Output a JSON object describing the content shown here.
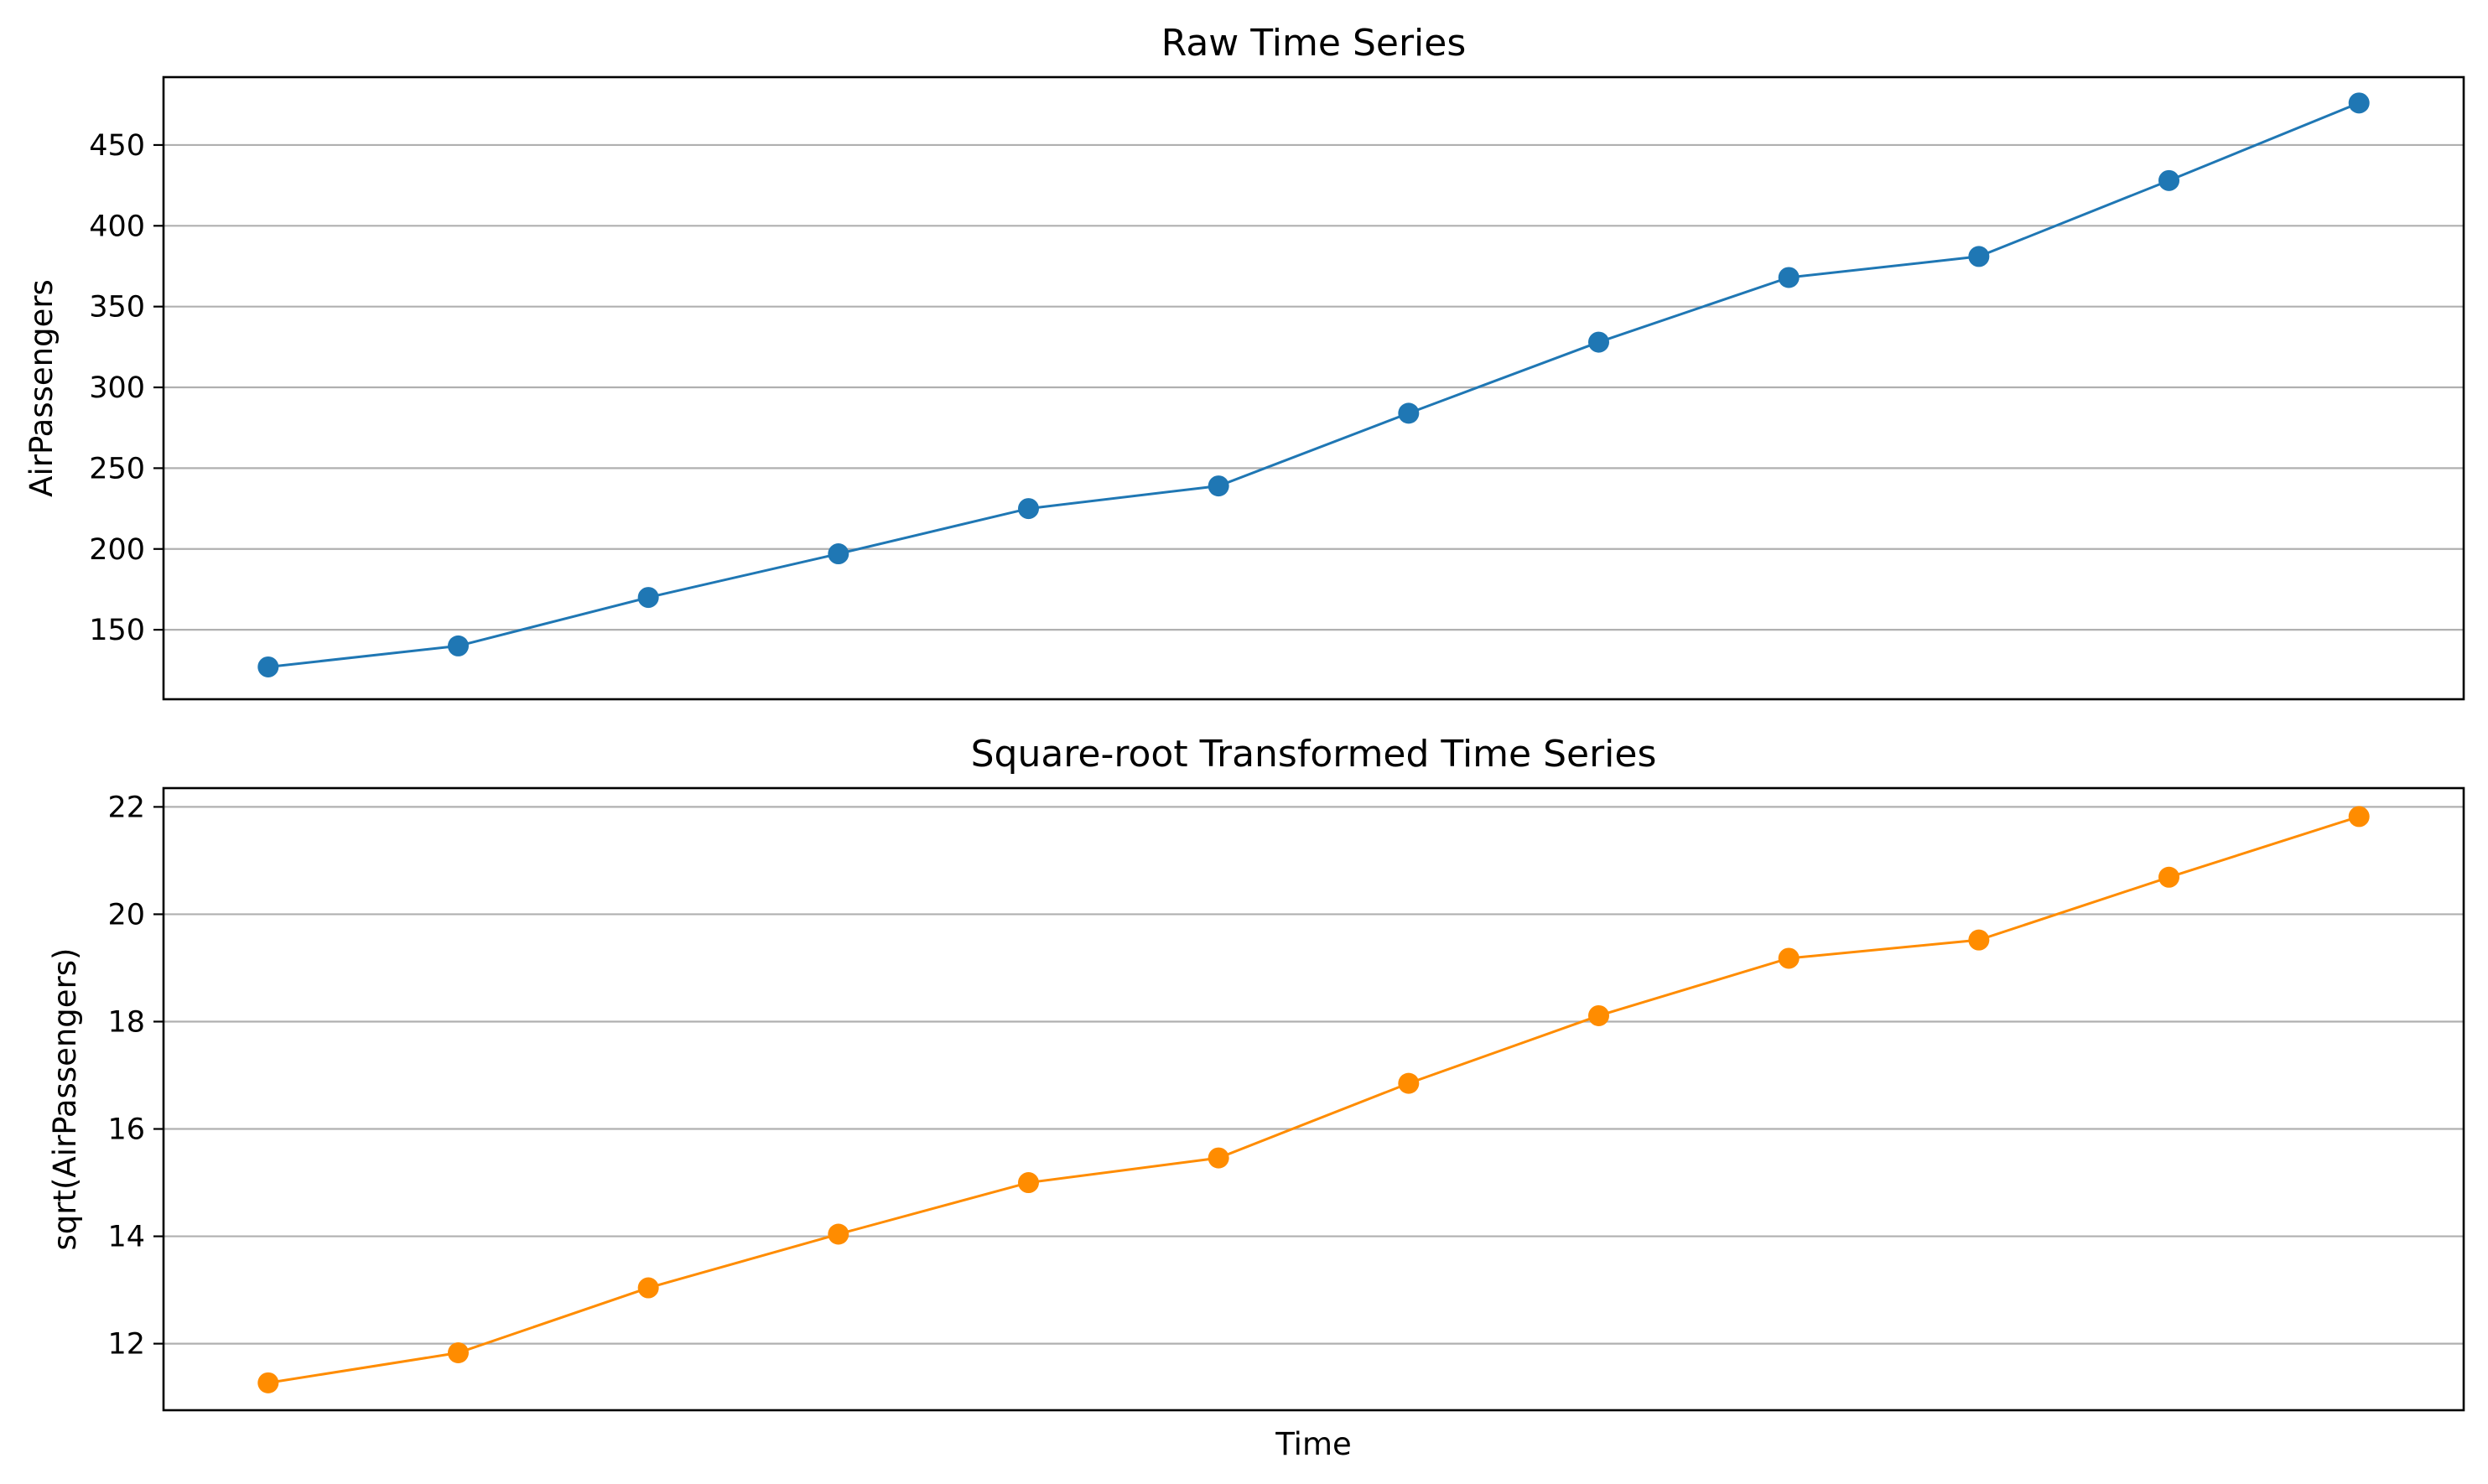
{
  "chart_data": [
    {
      "type": "line",
      "title": "Raw Time Series",
      "xlabel": "",
      "ylabel": "AirPassengers",
      "ylim": [
        107,
        492
      ],
      "yticks": [
        150,
        200,
        250,
        300,
        350,
        400,
        450
      ],
      "grid": "y",
      "legend": "none",
      "color": "#1f77b4",
      "x": [
        1,
        2,
        3,
        4,
        5,
        6,
        7,
        8,
        9,
        10,
        11,
        12
      ],
      "series": [
        {
          "values": [
            127,
            140,
            170,
            197,
            225,
            239,
            284,
            328,
            368,
            381,
            428,
            476
          ]
        }
      ]
    },
    {
      "type": "line",
      "title": "Square-root Transformed Time Series",
      "xlabel": "Time",
      "ylabel": "sqrt(AirPassengers)",
      "ylim": [
        10.76,
        22.35
      ],
      "yticks": [
        12,
        14,
        16,
        18,
        20,
        22
      ],
      "grid": "y",
      "legend": "none",
      "color": "#ff8c00",
      "x": [
        1,
        2,
        3,
        4,
        5,
        6,
        7,
        8,
        9,
        10,
        11,
        12
      ],
      "series": [
        {
          "values": [
            11.27,
            11.83,
            13.04,
            14.04,
            15.0,
            15.46,
            16.85,
            18.11,
            19.18,
            19.52,
            20.69,
            21.82
          ]
        }
      ]
    }
  ]
}
